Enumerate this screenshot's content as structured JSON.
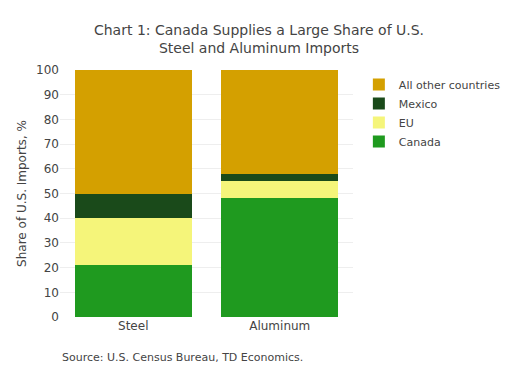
{
  "chart_data": {
    "type": "bar",
    "title": "Chart 1: Canada Supplies a Large Share of U.S.\nSteel and Aluminum Imports",
    "ylabel": "Share of U.S. Imports, %",
    "annotations": [
      "Source: U.S. Census Bureau, TD Economics."
    ],
    "categories": [
      "Steel",
      "Aluminum"
    ],
    "series": [
      {
        "name": "Canada",
        "values": [
          21,
          48
        ],
        "color": "#1f9a1f"
      },
      {
        "name": "EU",
        "values": [
          19,
          7
        ],
        "color": "#f5f57a"
      },
      {
        "name": "Mexico",
        "values": [
          10,
          3
        ],
        "color": "#1a4a1a"
      },
      {
        "name": "All other countries",
        "values": [
          50,
          42
        ],
        "color": "#d4a000"
      }
    ],
    "stacked": true,
    "ylim": [
      0,
      100
    ],
    "yticks": [
      0,
      10,
      20,
      30,
      40,
      50,
      60,
      70,
      80,
      90,
      100
    ],
    "grid": true,
    "legend": "right"
  }
}
